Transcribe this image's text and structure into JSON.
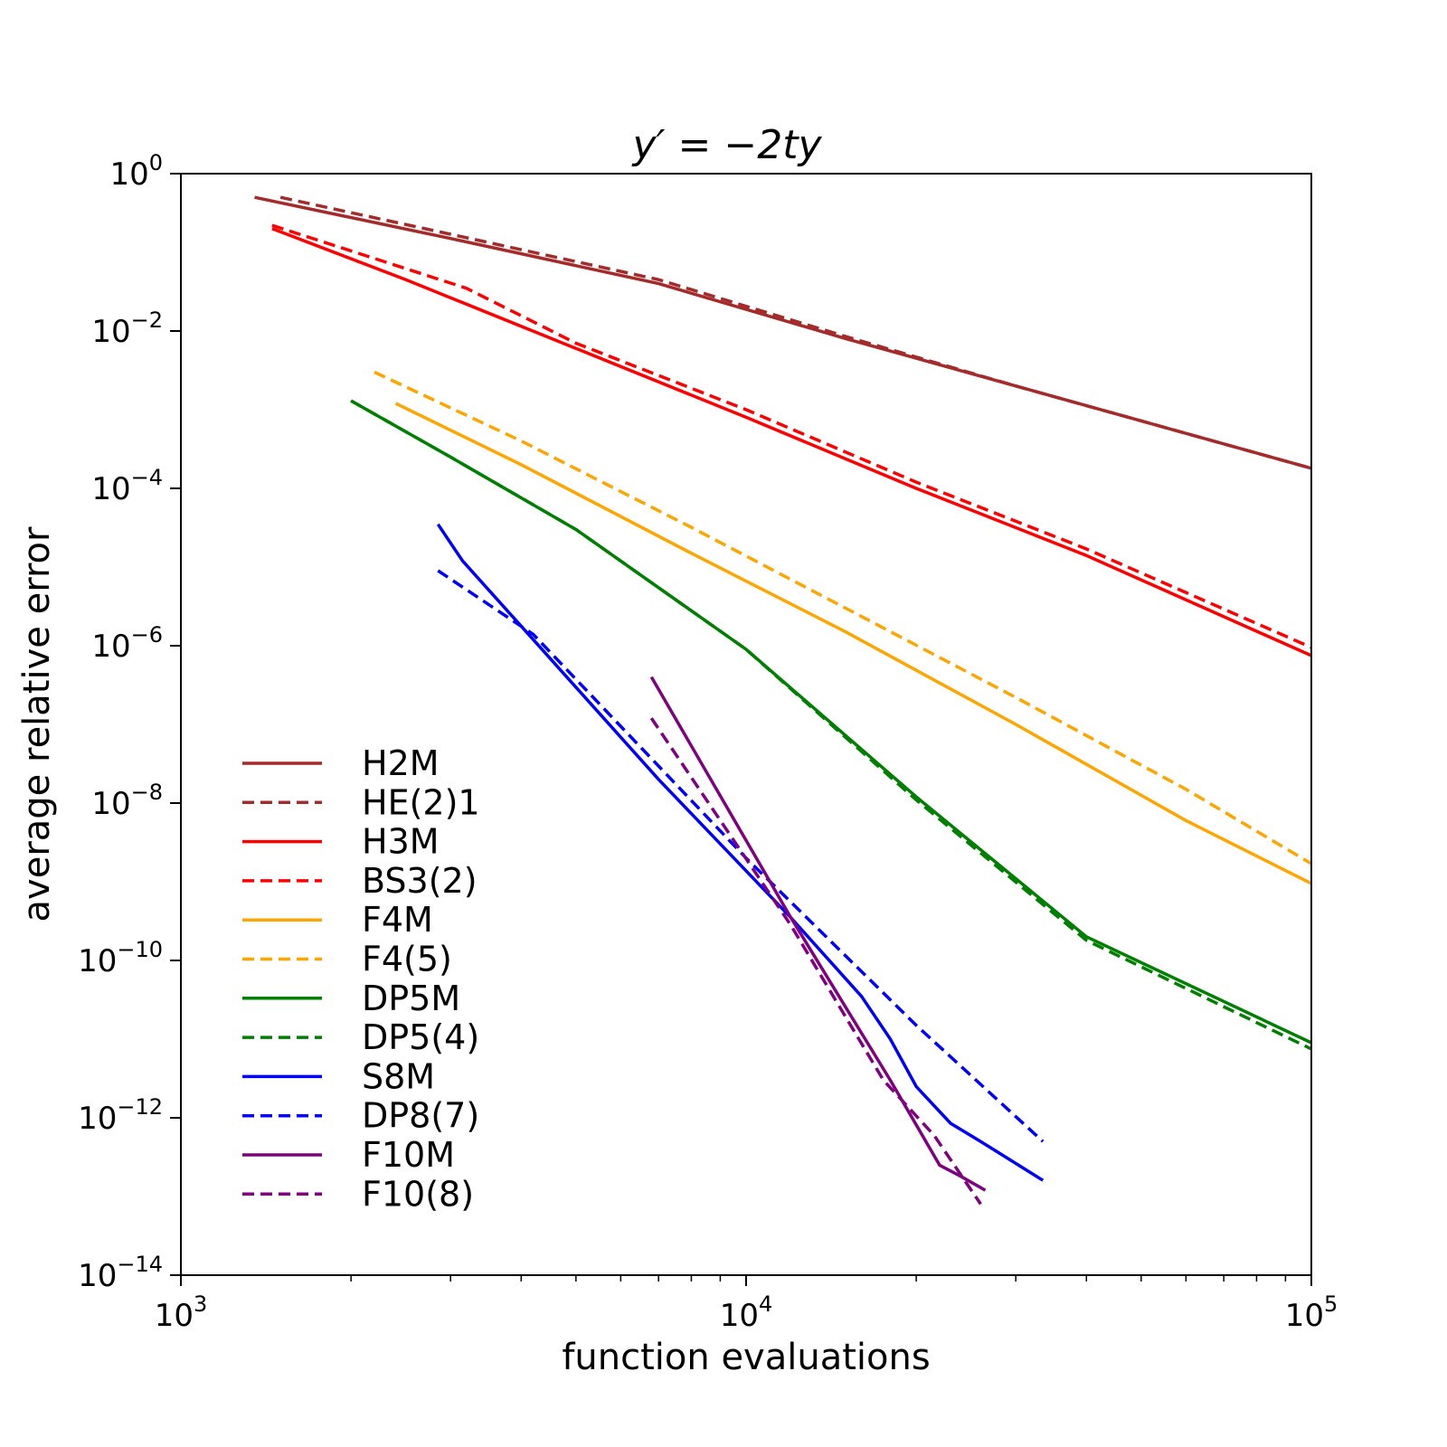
{
  "chart_data": {
    "type": "line",
    "title": "y′ = −2ty",
    "xlabel": "function evaluations",
    "ylabel": "average relative error",
    "xscale": "log",
    "yscale": "log",
    "xlim": [
      1000,
      100000
    ],
    "ylim": [
      1e-14,
      1
    ],
    "x_ticks": [
      {
        "base": "10",
        "exp": "3",
        "value": 1000
      },
      {
        "base": "10",
        "exp": "4",
        "value": 10000
      },
      {
        "base": "10",
        "exp": "5",
        "value": 100000
      }
    ],
    "y_ticks": [
      {
        "base": "10",
        "exp": "0",
        "value": 1
      },
      {
        "base": "10",
        "exp": "−2",
        "value": 0.01
      },
      {
        "base": "10",
        "exp": "−4",
        "value": 0.0001
      },
      {
        "base": "10",
        "exp": "−6",
        "value": 1e-06
      },
      {
        "base": "10",
        "exp": "−8",
        "value": 1e-08
      },
      {
        "base": "10",
        "exp": "−10",
        "value": 1e-10
      },
      {
        "base": "10",
        "exp": "−12",
        "value": 1e-12
      },
      {
        "base": "10",
        "exp": "−14",
        "value": 1e-14
      }
    ],
    "grid": false,
    "legend_position": "lower-left",
    "series": [
      {
        "name": "H2M",
        "color": "#a52a2a",
        "dash": false,
        "points": [
          [
            1350,
            0.5
          ],
          [
            3000,
            0.15
          ],
          [
            7000,
            0.04
          ],
          [
            15000,
            0.008
          ],
          [
            30000,
            0.002
          ],
          [
            60000,
            0.0005
          ],
          [
            100000,
            0.00018
          ]
        ]
      },
      {
        "name": "HE(2)1",
        "color": "#a52a2a",
        "dash": true,
        "points": [
          [
            1500,
            0.5
          ],
          [
            3000,
            0.17
          ],
          [
            7000,
            0.045
          ],
          [
            15000,
            0.0085
          ],
          [
            30000,
            0.002
          ],
          [
            60000,
            0.0005
          ],
          [
            100000,
            0.00018
          ]
        ]
      },
      {
        "name": "H3M",
        "color": "#ff0000",
        "dash": false,
        "points": [
          [
            1450,
            0.2
          ],
          [
            2500,
            0.045
          ],
          [
            5000,
            0.006
          ],
          [
            10000,
            0.0008
          ],
          [
            20000,
            0.0001
          ],
          [
            40000,
            1.4e-05
          ],
          [
            100000,
            7.5e-07
          ]
        ]
      },
      {
        "name": "BS3(2)",
        "color": "#ff0000",
        "dash": true,
        "points": [
          [
            1450,
            0.22
          ],
          [
            3200,
            0.035
          ],
          [
            5000,
            0.007
          ],
          [
            10000,
            0.001
          ],
          [
            20000,
            0.00012
          ],
          [
            40000,
            1.7e-05
          ],
          [
            100000,
            9.5e-07
          ]
        ]
      },
      {
        "name": "F4M",
        "color": "#ffa500",
        "dash": false,
        "points": [
          [
            2400,
            0.0012
          ],
          [
            4000,
            0.0002
          ],
          [
            8000,
            1.5e-05
          ],
          [
            15000,
            1.5e-06
          ],
          [
            30000,
            1e-07
          ],
          [
            60000,
            6e-09
          ],
          [
            100000,
            9.5e-10
          ]
        ]
      },
      {
        "name": "F4(5)",
        "color": "#ffa500",
        "dash": true,
        "points": [
          [
            2200,
            0.003
          ],
          [
            4000,
            0.0004
          ],
          [
            8000,
            3.2e-05
          ],
          [
            15000,
            3e-06
          ],
          [
            30000,
            2.2e-07
          ],
          [
            60000,
            1.5e-08
          ],
          [
            100000,
            1.7e-09
          ]
        ]
      },
      {
        "name": "DP5M",
        "color": "#008000",
        "dash": false,
        "points": [
          [
            2000,
            0.0013
          ],
          [
            3000,
            0.00025
          ],
          [
            5000,
            3e-05
          ],
          [
            10000,
            9e-07
          ],
          [
            20000,
            1.2e-08
          ],
          [
            40000,
            2e-10
          ],
          [
            100000,
            9e-12
          ]
        ]
      },
      {
        "name": "DP5(4)",
        "color": "#008000",
        "dash": true,
        "points": [
          [
            2000,
            0.0013
          ],
          [
            3000,
            0.00025
          ],
          [
            5000,
            3e-05
          ],
          [
            10000,
            9e-07
          ],
          [
            20000,
            1.1e-08
          ],
          [
            40000,
            1.8e-10
          ],
          [
            100000,
            7.5e-12
          ]
        ]
      },
      {
        "name": "S8M",
        "color": "#0000ff",
        "dash": false,
        "points": [
          [
            2850,
            3.5e-05
          ],
          [
            3150,
            1.2e-05
          ],
          [
            4200,
            1.2e-06
          ],
          [
            7000,
            2e-08
          ],
          [
            12000,
            3.5e-10
          ],
          [
            16000,
            3.5e-11
          ],
          [
            18000,
            1e-11
          ],
          [
            20000,
            2.5e-12
          ],
          [
            23000,
            8.5e-13
          ],
          [
            26000,
            5e-13
          ],
          [
            33500,
            1.6e-13
          ]
        ]
      },
      {
        "name": "DP8(7)",
        "color": "#0000ff",
        "dash": true,
        "points": [
          [
            2850,
            9e-06
          ],
          [
            4200,
            1.4e-06
          ],
          [
            10000,
            2e-09
          ],
          [
            20000,
            1.5e-11
          ],
          [
            33500,
            5e-13
          ]
        ]
      },
      {
        "name": "F10M",
        "color": "#800080",
        "dash": false,
        "points": [
          [
            6800,
            4e-07
          ],
          [
            12000,
            3.5e-10
          ],
          [
            18000,
            3e-12
          ],
          [
            22000,
            2.5e-13
          ],
          [
            24000,
            1.8e-13
          ],
          [
            26500,
            1.2e-13
          ]
        ]
      },
      {
        "name": "F10(8)",
        "color": "#800080",
        "dash": true,
        "points": [
          [
            6800,
            1.2e-07
          ],
          [
            12000,
            2.8e-10
          ],
          [
            17500,
            3e-12
          ],
          [
            21500,
            6e-13
          ],
          [
            26000,
            8e-14
          ]
        ]
      }
    ]
  }
}
